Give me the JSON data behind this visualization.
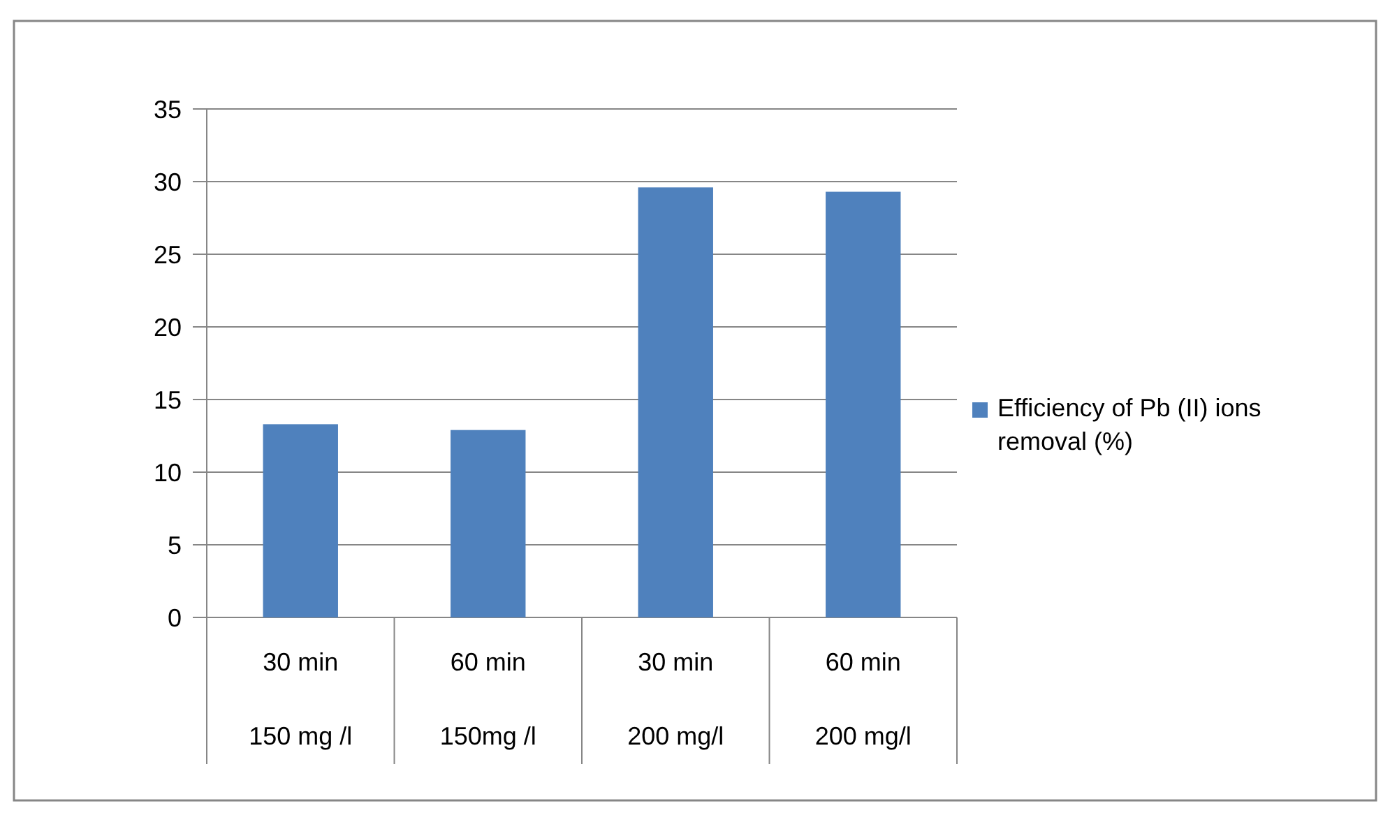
{
  "chart_data": {
    "type": "bar",
    "categories": [
      "30 min\n150 mg /l",
      "60 min\n150mg /l",
      "30 min\n200 mg/l",
      "60 min\n200 mg/l"
    ],
    "series": [
      {
        "name": "Efficiency of Pb (II) ions removal (%)",
        "color": "#4f81bd",
        "values": [
          13.3,
          12.9,
          29.6,
          29.3
        ]
      }
    ],
    "ylim": [
      0,
      35
    ],
    "yticks": [
      0,
      5,
      10,
      15,
      20,
      25,
      30,
      35
    ],
    "grid": "y",
    "legend": "right"
  }
}
